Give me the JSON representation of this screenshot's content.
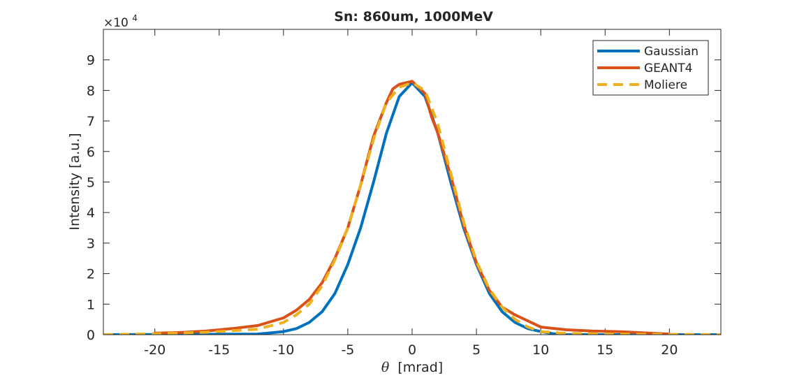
{
  "chart_data": {
    "type": "line",
    "title": "Sn: 860um, 1000MeV",
    "xlabel_symbol": "θ",
    "xlabel_unit": "[mrad]",
    "ylabel": "Intensity [a.u.]",
    "y_exponent_label": "×10",
    "y_exponent": "4",
    "xlim": [
      -24,
      24
    ],
    "ylim": [
      0,
      10
    ],
    "xticks": [
      -20,
      -15,
      -10,
      -5,
      0,
      5,
      10,
      15,
      20
    ],
    "yticks": [
      0,
      1,
      2,
      3,
      4,
      5,
      6,
      7,
      8,
      9
    ],
    "grid": false,
    "legend_position": "top-right",
    "series": [
      {
        "name": "Gaussian",
        "color": "#0072BD",
        "style": "solid",
        "x": [
          -24,
          -12,
          -10,
          -9,
          -8,
          -7,
          -6,
          -5,
          -4,
          -3,
          -2,
          -1,
          0,
          1,
          2,
          3,
          4,
          5,
          6,
          7,
          8,
          9,
          10,
          11,
          12,
          24
        ],
        "y": [
          0,
          0.02,
          0.1,
          0.2,
          0.4,
          0.75,
          1.35,
          2.3,
          3.5,
          5.0,
          6.6,
          7.8,
          8.25,
          7.8,
          6.6,
          5.0,
          3.5,
          2.3,
          1.35,
          0.75,
          0.4,
          0.2,
          0.1,
          0.03,
          0,
          0
        ]
      },
      {
        "name": "GEANT4",
        "color": "#D95319",
        "style": "solid",
        "x": [
          -20,
          -18,
          -16,
          -14,
          -12,
          -10,
          -9,
          -8,
          -7,
          -6,
          -5,
          -4,
          -3,
          -2.5,
          -2,
          -1.5,
          -1,
          0,
          1,
          1.5,
          2,
          3,
          4,
          5,
          6,
          7,
          8,
          9,
          10,
          12,
          14,
          16,
          18,
          20
        ],
        "y": [
          0.05,
          0.07,
          0.12,
          0.2,
          0.3,
          0.55,
          0.8,
          1.15,
          1.7,
          2.5,
          3.5,
          4.9,
          6.5,
          7.05,
          7.6,
          8.05,
          8.2,
          8.3,
          7.9,
          7.15,
          6.6,
          5.2,
          3.6,
          2.35,
          1.45,
          0.9,
          0.65,
          0.45,
          0.25,
          0.16,
          0.12,
          0.1,
          0.06,
          0.02
        ]
      },
      {
        "name": "Moliere",
        "color": "#EDB120",
        "style": "dashed",
        "x": [
          -24,
          -20,
          -16,
          -12,
          -10,
          -9,
          -8,
          -7,
          -6,
          -5,
          -4,
          -3,
          -2,
          -1,
          0,
          1,
          2,
          3,
          4,
          5,
          6,
          7,
          8,
          9,
          10,
          12,
          16,
          20,
          24
        ],
        "y": [
          0,
          0.03,
          0.08,
          0.18,
          0.4,
          0.65,
          1.0,
          1.6,
          2.45,
          3.5,
          4.9,
          6.4,
          7.6,
          8.1,
          8.25,
          8.0,
          6.9,
          5.3,
          3.7,
          2.4,
          1.5,
          0.9,
          0.5,
          0.25,
          0.1,
          0.04,
          0.02,
          0.01,
          0
        ]
      }
    ]
  }
}
